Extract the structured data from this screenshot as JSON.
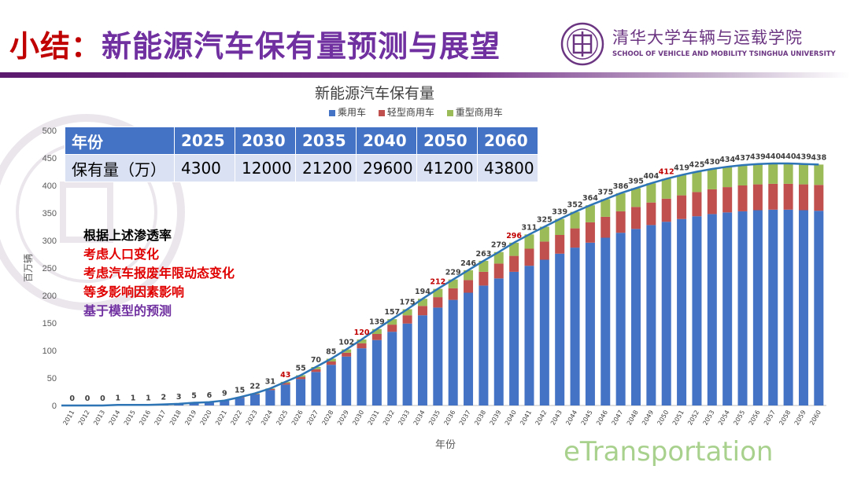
{
  "slide": {
    "title_prefix": "小结：",
    "title_main": "新能源汽车保有量预测与展望",
    "university_name": "清华大学车辆与运载学院",
    "university_en": "SCHOOL OF VEHICLE AND MOBILITY TSINGHUA UNIVERSITY",
    "watermark": "eTransportation"
  },
  "table": {
    "header": [
      "年份",
      "2025",
      "2030",
      "2035",
      "2040",
      "2050",
      "2060"
    ],
    "row": [
      "保有量（万）",
      "4300",
      "12000",
      "21200",
      "29600",
      "41200",
      "43800"
    ]
  },
  "notes": [
    {
      "text": "根据上述渗透率",
      "color": "#000000"
    },
    {
      "text": "考虑人口变化",
      "color": "#e00000"
    },
    {
      "text": "考虑汽车报废年限动态变化",
      "color": "#e00000"
    },
    {
      "text": "等多影响因素影响",
      "color": "#e00000"
    },
    {
      "text": "基于模型的预测",
      "color": "#7030a0"
    }
  ],
  "chart_data": {
    "type": "bar",
    "stacked": true,
    "title": "新能源汽车保有量",
    "xlabel": "年份",
    "ylabel": "百万辆",
    "ylim": [
      0,
      500
    ],
    "yticks": [
      0,
      50,
      100,
      150,
      200,
      250,
      300,
      350,
      400,
      450,
      500
    ],
    "grid": false,
    "legend_position": "top",
    "categories": [
      "2011",
      "2012",
      "2013",
      "2014",
      "2015",
      "2016",
      "2017",
      "2018",
      "2019",
      "2020",
      "2021",
      "2022",
      "2023",
      "2024",
      "2025",
      "2026",
      "2027",
      "2028",
      "2029",
      "2030",
      "2031",
      "2032",
      "2033",
      "2034",
      "2035",
      "2036",
      "2037",
      "2038",
      "2039",
      "2040",
      "2041",
      "2042",
      "2043",
      "2044",
      "2045",
      "2046",
      "2047",
      "2048",
      "2049",
      "2050",
      "2051",
      "2052",
      "2053",
      "2054",
      "2055",
      "2056",
      "2057",
      "2058",
      "2059",
      "2060"
    ],
    "totals": [
      0,
      0,
      0,
      1,
      1,
      1,
      2,
      3,
      5,
      6,
      9,
      15,
      22,
      31,
      43,
      55,
      70,
      85,
      102,
      120,
      139,
      157,
      175,
      194,
      212,
      229,
      246,
      263,
      279,
      296,
      311,
      325,
      339,
      352,
      364,
      375,
      386,
      395,
      404,
      412,
      419,
      425,
      430,
      434,
      437,
      439,
      440,
      440,
      439,
      438
    ],
    "highlight_categories": [
      "2025",
      "2035",
      "2040",
      "2050",
      "2030"
    ],
    "highlight_color": "#c00000",
    "series": [
      {
        "name": "乘用车",
        "color": "#4472c4",
        "values": [
          0,
          0,
          0,
          1,
          1,
          1,
          2,
          3,
          5,
          6,
          9,
          14,
          20,
          28,
          38,
          48,
          61,
          74,
          89,
          104,
          119,
          134,
          149,
          164,
          178,
          192,
          205,
          218,
          231,
          243,
          254,
          265,
          276,
          287,
          296,
          305,
          314,
          321,
          328,
          334,
          339,
          344,
          348,
          351,
          353,
          355,
          356,
          356,
          355,
          354
        ]
      },
      {
        "name": "轻型商用车",
        "color": "#c0504d",
        "values": [
          0,
          0,
          0,
          0,
          0,
          0,
          0,
          0,
          0,
          0,
          0,
          1,
          1,
          2,
          3,
          4,
          5,
          6,
          7,
          9,
          11,
          13,
          15,
          17,
          19,
          21,
          23,
          25,
          27,
          29,
          31,
          33,
          34,
          35,
          37,
          38,
          39,
          40,
          41,
          42,
          43,
          44,
          45,
          46,
          47,
          47,
          47,
          47,
          47,
          47
        ]
      },
      {
        "name": "重型商用车",
        "color": "#9bbb59",
        "values": [
          0,
          0,
          0,
          0,
          0,
          0,
          0,
          0,
          0,
          0,
          0,
          0,
          1,
          1,
          2,
          3,
          4,
          5,
          6,
          7,
          9,
          10,
          11,
          13,
          15,
          16,
          18,
          20,
          21,
          24,
          26,
          27,
          29,
          30,
          31,
          32,
          33,
          34,
          35,
          36,
          37,
          37,
          37,
          37,
          37,
          37,
          37,
          37,
          37,
          37
        ]
      }
    ],
    "trend_line_color": "#2e75b6"
  }
}
